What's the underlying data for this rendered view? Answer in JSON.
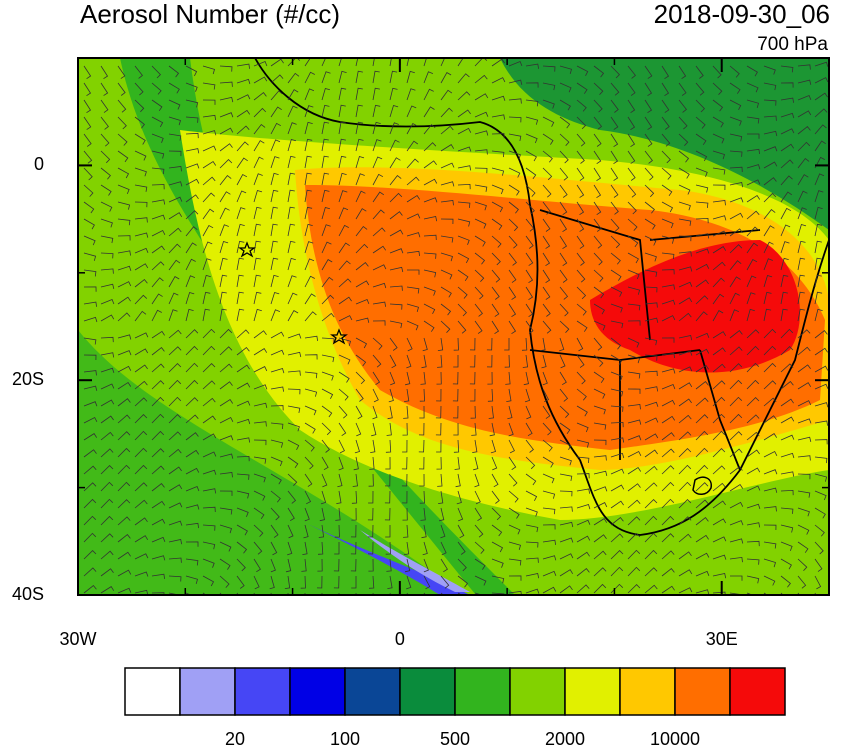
{
  "title": "Aerosol Number (#/cc)",
  "valid_time": "2018-09-30_06",
  "level": "700 hPa",
  "map": {
    "lon_range": [
      -30,
      40
    ],
    "lat_range": [
      -40,
      10
    ],
    "lon_ticks": [
      {
        "value": -30,
        "label": "30W"
      },
      0,
      {
        "value": 30,
        "label": "30E"
      }
    ],
    "lat_ticks": [
      0,
      {
        "value": -20,
        "label": "20S"
      },
      {
        "value": -40,
        "label": "40S"
      }
    ]
  },
  "colorbar": {
    "colors": [
      "#ffffff",
      "#a0a0f5",
      "#4646f5",
      "#0000e6",
      "#0a4696",
      "#0a8c3c",
      "#32b41e",
      "#82d200",
      "#e1f000",
      "#ffc800",
      "#ff6e00",
      "#f50a0a"
    ],
    "labels": [
      20,
      100,
      500,
      2000,
      10000
    ]
  }
}
